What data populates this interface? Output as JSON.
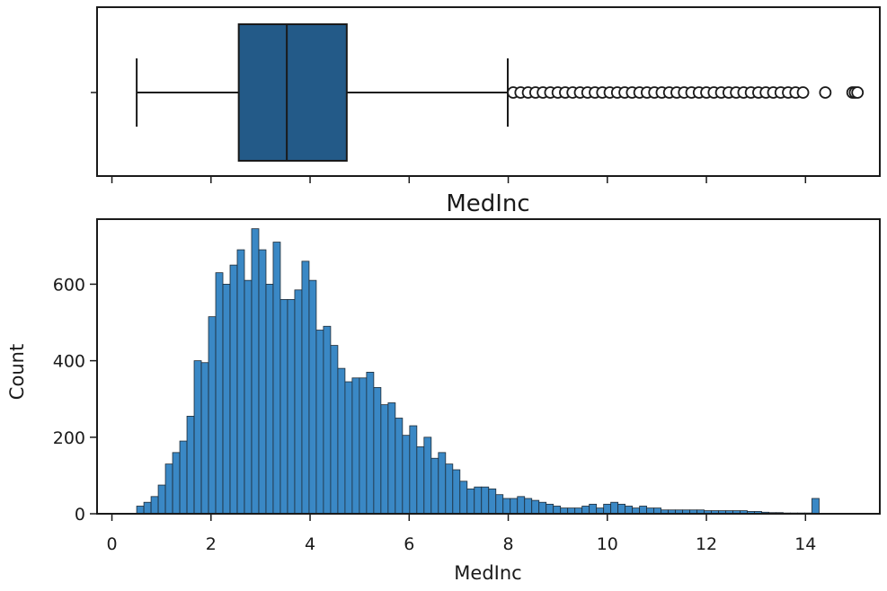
{
  "chart_data": [
    {
      "type": "box",
      "title": "MedInc",
      "orientation": "horizontal",
      "xlim": [
        -0.3,
        15.5
      ],
      "x_ticks": [
        0,
        2,
        4,
        6,
        8,
        10,
        12,
        14
      ],
      "whisker_low": 0.5,
      "q1": 2.56,
      "median": 3.53,
      "q3": 4.74,
      "whisker_high": 7.99,
      "outliers": [
        8.1,
        8.25,
        8.4,
        8.55,
        8.7,
        8.85,
        9.0,
        9.15,
        9.3,
        9.45,
        9.6,
        9.75,
        9.9,
        10.05,
        10.2,
        10.35,
        10.5,
        10.65,
        10.8,
        10.95,
        11.1,
        11.25,
        11.4,
        11.55,
        11.7,
        11.85,
        12.0,
        12.15,
        12.3,
        12.45,
        12.6,
        12.75,
        12.9,
        13.05,
        13.2,
        13.35,
        13.5,
        13.65,
        13.8,
        13.95,
        14.4,
        14.95,
        15.0,
        15.05
      ],
      "colors": {
        "box": "#235a88",
        "line": "#1a1a1a"
      }
    },
    {
      "type": "bar",
      "xlabel": "MedInc",
      "ylabel": "Count",
      "xlim": [
        -0.3,
        15.5
      ],
      "ylim": [
        0,
        770
      ],
      "x_ticks": [
        0,
        2,
        4,
        6,
        8,
        10,
        12,
        14
      ],
      "y_ticks": [
        0,
        200,
        400,
        600
      ],
      "bin_start": 0.4999,
      "bin_width": 0.145,
      "values": [
        20,
        30,
        45,
        75,
        130,
        160,
        190,
        255,
        400,
        395,
        515,
        630,
        600,
        650,
        690,
        610,
        745,
        690,
        600,
        710,
        560,
        560,
        585,
        660,
        610,
        480,
        490,
        440,
        380,
        345,
        355,
        355,
        370,
        330,
        285,
        290,
        250,
        205,
        230,
        175,
        200,
        145,
        160,
        130,
        115,
        85,
        65,
        70,
        70,
        65,
        50,
        40,
        40,
        45,
        40,
        35,
        30,
        25,
        20,
        15,
        15,
        15,
        20,
        25,
        15,
        25,
        30,
        25,
        20,
        15,
        20,
        15,
        15,
        10,
        10,
        10,
        10,
        10,
        10,
        8,
        8,
        8,
        8,
        8,
        8,
        6,
        6,
        4,
        3,
        3,
        2,
        2,
        2,
        2,
        40
      ],
      "colors": {
        "bar": "#3a88c5",
        "edge": "#1e2b36"
      }
    }
  ]
}
